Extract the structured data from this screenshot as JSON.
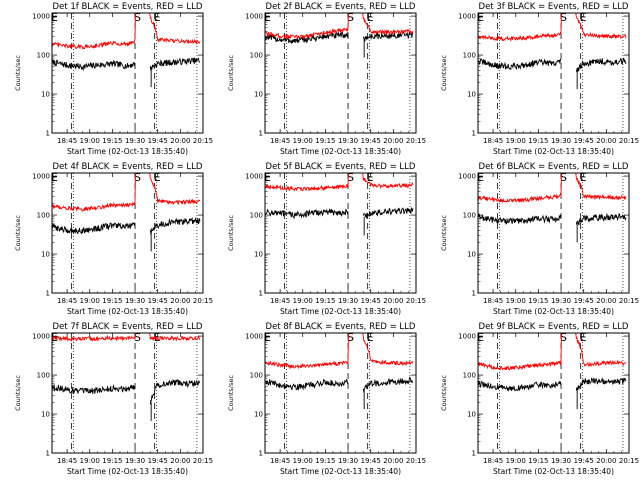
{
  "figure": {
    "ylabel": "Counts/sec",
    "xlabel": "Start Time (02-Oct-13 18:35:40)",
    "x_ticks": [
      "18:45",
      "19:00",
      "19:15",
      "19:30",
      "19:45",
      "20:00",
      "20:15"
    ],
    "y_ticks": [
      "1",
      "10",
      "100",
      "1000"
    ],
    "markers": [
      "E",
      "S",
      "E"
    ],
    "colors": {
      "events": "#000000",
      "lld": "#ff0000"
    }
  },
  "chart_data": [
    {
      "type": "line",
      "title": "Det 1f BLACK = Events, RED = LLD",
      "x_unit": "minutes after 18:35:40",
      "xlim": [
        0,
        100
      ],
      "ylim": [
        1,
        1200
      ],
      "yscale": "log",
      "marker_lines": {
        "E1": 13,
        "S": 55,
        "E2": 68,
        "dotted": [
          13,
          68
        ]
      },
      "gap": [
        55,
        65
      ],
      "series": [
        {
          "key": "events",
          "x": [
            0,
            10,
            20,
            30,
            40,
            50,
            55,
            65,
            70,
            80,
            90,
            98
          ],
          "y": [
            65,
            55,
            50,
            55,
            60,
            52,
            60,
            45,
            60,
            65,
            70,
            72
          ]
        },
        {
          "key": "lld",
          "x": [
            0,
            10,
            20,
            30,
            40,
            50,
            55,
            65,
            70,
            80,
            90,
            98
          ],
          "y": [
            190,
            170,
            160,
            175,
            200,
            190,
            230,
            900,
            250,
            230,
            225,
            220
          ]
        }
      ]
    },
    {
      "type": "line",
      "title": "Det 2f BLACK = Events, RED = LLD",
      "x_unit": "minutes after 18:35:40",
      "xlim": [
        0,
        100
      ],
      "ylim": [
        1,
        1200
      ],
      "yscale": "log",
      "marker_lines": {
        "E1": 13,
        "S": 55,
        "E2": 68,
        "dotted": [
          13,
          68
        ]
      },
      "gap": [
        55,
        65
      ],
      "series": [
        {
          "key": "events",
          "x": [
            0,
            10,
            20,
            30,
            40,
            50,
            55,
            65,
            70,
            80,
            90,
            98
          ],
          "y": [
            290,
            250,
            230,
            260,
            300,
            320,
            330,
            260,
            300,
            310,
            320,
            330
          ]
        },
        {
          "key": "lld",
          "x": [
            0,
            10,
            20,
            30,
            40,
            50,
            55,
            65,
            70,
            80,
            90,
            98
          ],
          "y": [
            360,
            310,
            290,
            320,
            380,
            420,
            440,
            900,
            400,
            380,
            390,
            400
          ]
        }
      ]
    },
    {
      "type": "line",
      "title": "Det 3f BLACK = Events, RED = LLD",
      "x_unit": "minutes after 18:35:40",
      "xlim": [
        0,
        100
      ],
      "ylim": [
        1,
        1200
      ],
      "yscale": "log",
      "marker_lines": {
        "E1": 13,
        "S": 55,
        "E2": 68,
        "dotted": [
          13,
          68
        ]
      },
      "gap": [
        55,
        65
      ],
      "series": [
        {
          "key": "events",
          "x": [
            0,
            10,
            20,
            30,
            40,
            50,
            55,
            65,
            70,
            80,
            90,
            98
          ],
          "y": [
            70,
            55,
            50,
            55,
            65,
            60,
            70,
            40,
            60,
            70,
            65,
            70
          ]
        },
        {
          "key": "lld",
          "x": [
            0,
            10,
            20,
            30,
            40,
            50,
            55,
            65,
            70,
            80,
            90,
            98
          ],
          "y": [
            290,
            270,
            260,
            280,
            300,
            320,
            340,
            900,
            330,
            310,
            300,
            300
          ]
        }
      ]
    },
    {
      "type": "line",
      "title": "Det 4f BLACK = Events, RED = LLD",
      "x_unit": "minutes after 18:35:40",
      "xlim": [
        0,
        100
      ],
      "ylim": [
        1,
        1200
      ],
      "yscale": "log",
      "marker_lines": {
        "E1": 13,
        "S": 55,
        "E2": 68,
        "dotted": [
          13,
          68
        ]
      },
      "gap": [
        55,
        65
      ],
      "series": [
        {
          "key": "events",
          "x": [
            0,
            10,
            20,
            30,
            40,
            50,
            55,
            65,
            70,
            80,
            90,
            98
          ],
          "y": [
            50,
            40,
            40,
            45,
            55,
            50,
            55,
            35,
            55,
            65,
            70,
            70
          ]
        },
        {
          "key": "lld",
          "x": [
            0,
            10,
            20,
            30,
            40,
            50,
            55,
            65,
            70,
            80,
            90,
            98
          ],
          "y": [
            170,
            150,
            140,
            155,
            180,
            175,
            200,
            900,
            230,
            210,
            220,
            220
          ]
        }
      ]
    },
    {
      "type": "line",
      "title": "Det 5f BLACK = Events, RED = LLD",
      "x_unit": "minutes after 18:35:40",
      "xlim": [
        0,
        100
      ],
      "ylim": [
        1,
        1200
      ],
      "yscale": "log",
      "marker_lines": {
        "E1": 13,
        "S": 55,
        "E2": 68,
        "dotted": [
          13,
          68
        ]
      },
      "gap": [
        55,
        65
      ],
      "series": [
        {
          "key": "events",
          "x": [
            0,
            10,
            20,
            30,
            40,
            50,
            55,
            65,
            70,
            80,
            90,
            98
          ],
          "y": [
            120,
            110,
            100,
            110,
            120,
            115,
            120,
            90,
            110,
            120,
            125,
            130
          ]
        },
        {
          "key": "lld",
          "x": [
            0,
            10,
            20,
            30,
            40,
            50,
            55,
            65,
            70,
            80,
            90,
            98
          ],
          "y": [
            560,
            500,
            460,
            480,
            500,
            520,
            560,
            900,
            580,
            560,
            570,
            590
          ]
        }
      ]
    },
    {
      "type": "line",
      "title": "Det 6f BLACK = Events, RED = LLD",
      "x_unit": "minutes after 18:35:40",
      "xlim": [
        0,
        100
      ],
      "ylim": [
        1,
        1200
      ],
      "yscale": "log",
      "marker_lines": {
        "E1": 13,
        "S": 55,
        "E2": 68,
        "dotted": [
          13,
          68
        ]
      },
      "gap": [
        55,
        65
      ],
      "series": [
        {
          "key": "events",
          "x": [
            0,
            10,
            20,
            30,
            40,
            50,
            55,
            65,
            70,
            80,
            90,
            98
          ],
          "y": [
            90,
            75,
            70,
            72,
            80,
            78,
            90,
            60,
            80,
            85,
            90,
            92
          ]
        },
        {
          "key": "lld",
          "x": [
            0,
            10,
            20,
            30,
            40,
            50,
            55,
            65,
            70,
            80,
            90,
            98
          ],
          "y": [
            280,
            250,
            230,
            240,
            270,
            290,
            320,
            900,
            310,
            290,
            280,
            290
          ]
        }
      ]
    },
    {
      "type": "line",
      "title": "Det 7f BLACK = Events, RED = LLD",
      "x_unit": "minutes after 18:35:40",
      "xlim": [
        0,
        100
      ],
      "ylim": [
        1,
        1200
      ],
      "yscale": "log",
      "marker_lines": {
        "E1": 13,
        "S": 55,
        "E2": 68,
        "dotted": [
          13,
          68
        ]
      },
      "gap": [
        55,
        65
      ],
      "series": [
        {
          "key": "events",
          "x": [
            0,
            10,
            20,
            30,
            40,
            50,
            55,
            65,
            70,
            80,
            90,
            98
          ],
          "y": [
            50,
            42,
            38,
            40,
            45,
            45,
            50,
            20,
            55,
            65,
            60,
            62
          ]
        },
        {
          "key": "lld",
          "x": [
            0,
            10,
            20,
            30,
            40,
            50,
            55,
            65,
            70,
            80,
            90,
            98
          ],
          "y": [
            880,
            860,
            840,
            860,
            880,
            890,
            900,
            900,
            880,
            870,
            880,
            890
          ]
        }
      ]
    },
    {
      "type": "line",
      "title": "Det 8f BLACK = Events, RED = LLD",
      "x_unit": "minutes after 18:35:40",
      "xlim": [
        0,
        100
      ],
      "ylim": [
        1,
        1200
      ],
      "yscale": "log",
      "marker_lines": {
        "E1": 13,
        "S": 55,
        "E2": 68,
        "dotted": [
          13,
          68
        ]
      },
      "gap": [
        55,
        65
      ],
      "series": [
        {
          "key": "events",
          "x": [
            0,
            10,
            20,
            30,
            40,
            50,
            55,
            65,
            70,
            80,
            90,
            98
          ],
          "y": [
            70,
            55,
            50,
            55,
            65,
            60,
            70,
            40,
            60,
            65,
            70,
            75
          ]
        },
        {
          "key": "lld",
          "x": [
            0,
            10,
            20,
            30,
            40,
            50,
            55,
            65,
            70,
            80,
            90,
            98
          ],
          "y": [
            210,
            180,
            170,
            175,
            190,
            200,
            220,
            900,
            230,
            210,
            200,
            210
          ]
        }
      ]
    },
    {
      "type": "line",
      "title": "Det 9f BLACK = Events, RED = LLD",
      "x_unit": "minutes after 18:35:40",
      "xlim": [
        0,
        100
      ],
      "ylim": [
        1,
        1200
      ],
      "yscale": "log",
      "marker_lines": {
        "E1": 13,
        "S": 55,
        "E2": 68,
        "dotted": [
          13,
          68
        ]
      },
      "gap": [
        55,
        65
      ],
      "series": [
        {
          "key": "events",
          "x": [
            0,
            10,
            20,
            30,
            40,
            50,
            55,
            65,
            70,
            80,
            90,
            98
          ],
          "y": [
            60,
            50,
            45,
            48,
            55,
            55,
            60,
            40,
            70,
            70,
            65,
            70
          ]
        },
        {
          "key": "lld",
          "x": [
            0,
            10,
            20,
            30,
            40,
            50,
            55,
            65,
            70,
            80,
            90,
            98
          ],
          "y": [
            190,
            160,
            150,
            160,
            180,
            190,
            210,
            900,
            180,
            200,
            210,
            200
          ]
        }
      ]
    }
  ]
}
